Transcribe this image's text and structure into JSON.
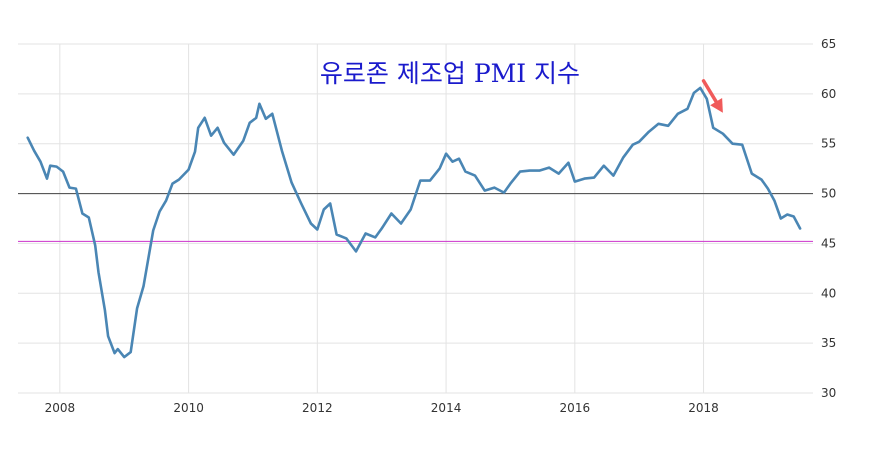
{
  "chart_data": {
    "type": "line",
    "title": "유로존 제조업 PMI 지수",
    "xlabel": "",
    "ylabel": "",
    "xlim": [
      2007.35,
      2019.7
    ],
    "ylim": [
      30,
      65
    ],
    "x_ticks": [
      2008,
      2010,
      2012,
      2014,
      2016,
      2018
    ],
    "x_tick_labels": [
      "2008",
      "2010",
      "2012",
      "2014",
      "2016",
      "2018"
    ],
    "y_ticks": [
      30,
      35,
      40,
      45,
      50,
      55,
      60,
      65
    ],
    "y_tick_labels": [
      "30",
      "35",
      "40",
      "45",
      "50",
      "55",
      "60",
      "65"
    ],
    "grid": true,
    "reference_lines": [
      {
        "y": 50,
        "color": "#444444"
      },
      {
        "y": 45.2,
        "color": "#cc33cc"
      }
    ],
    "annotation": {
      "type": "arrow",
      "color": "#f05a5a",
      "from": [
        2018.0,
        61.3
      ],
      "to": [
        2018.3,
        58.1
      ]
    },
    "series": [
      {
        "color": "#4a86b4",
        "x": [
          2007.5,
          2007.6,
          2007.7,
          2007.8,
          2007.85,
          2007.95,
          2008.05,
          2008.15,
          2008.25,
          2008.35,
          2008.45,
          2008.55,
          2008.6,
          2008.7,
          2008.75,
          2008.85,
          2008.9,
          2009.0,
          2009.1,
          2009.2,
          2009.3,
          2009.45,
          2009.55,
          2009.65,
          2009.75,
          2009.85,
          2010.0,
          2010.1,
          2010.15,
          2010.25,
          2010.35,
          2010.45,
          2010.55,
          2010.7,
          2010.85,
          2010.95,
          2011.05,
          2011.1,
          2011.2,
          2011.3,
          2011.45,
          2011.6,
          2011.75,
          2011.9,
          2012.0,
          2012.1,
          2012.2,
          2012.3,
          2012.45,
          2012.6,
          2012.75,
          2012.9,
          2013.0,
          2013.15,
          2013.3,
          2013.45,
          2013.6,
          2013.75,
          2013.9,
          2014.0,
          2014.1,
          2014.2,
          2014.3,
          2014.45,
          2014.6,
          2014.75,
          2014.9,
          2015.0,
          2015.15,
          2015.3,
          2015.45,
          2015.6,
          2015.75,
          2015.9,
          2016.0,
          2016.15,
          2016.3,
          2016.45,
          2016.6,
          2016.75,
          2016.9,
          2017.0,
          2017.15,
          2017.3,
          2017.45,
          2017.6,
          2017.75,
          2017.85,
          2017.95,
          2018.05,
          2018.15,
          2018.3,
          2018.45,
          2018.6,
          2018.75,
          2018.9,
          2019.0,
          2019.1,
          2019.2,
          2019.3,
          2019.4,
          2019.5
        ],
        "y": [
          55.6,
          54.3,
          53.2,
          51.5,
          52.8,
          52.7,
          52.2,
          50.6,
          50.5,
          48.0,
          47.6,
          44.8,
          42.1,
          38.3,
          35.7,
          34.0,
          34.4,
          33.6,
          34.1,
          38.5,
          40.7,
          46.3,
          48.2,
          49.3,
          51.0,
          51.4,
          52.4,
          54.2,
          56.6,
          57.6,
          55.8,
          56.6,
          55.1,
          53.9,
          55.3,
          57.1,
          57.6,
          59.0,
          57.5,
          58.0,
          54.3,
          51.1,
          49.0,
          47.0,
          46.4,
          48.4,
          49.0,
          45.9,
          45.5,
          44.2,
          46.0,
          45.6,
          46.5,
          48.0,
          47.0,
          48.4,
          51.3,
          51.3,
          52.5,
          54.0,
          53.2,
          53.5,
          52.2,
          51.8,
          50.3,
          50.6,
          50.1,
          51.0,
          52.2,
          52.3,
          52.3,
          52.6,
          52.0,
          53.1,
          51.2,
          51.5,
          51.6,
          52.8,
          51.8,
          53.6,
          54.9,
          55.2,
          56.2,
          57.0,
          56.8,
          58.0,
          58.5,
          60.1,
          60.6,
          59.5,
          56.6,
          56.0,
          55.0,
          54.9,
          52.0,
          51.4,
          50.5,
          49.3,
          47.5,
          47.9,
          47.7,
          46.5
        ]
      }
    ]
  }
}
